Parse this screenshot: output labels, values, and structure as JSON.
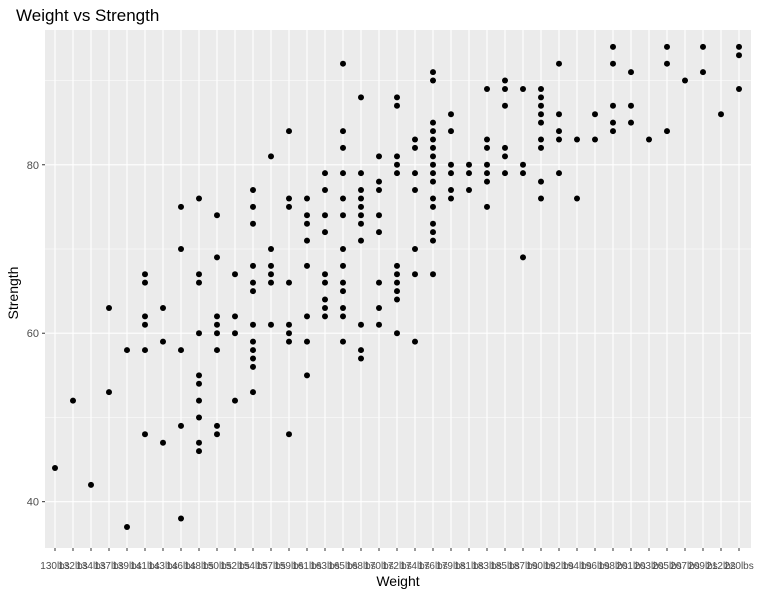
{
  "chart_data": {
    "type": "scatter",
    "title": "Weight vs Strength",
    "xlabel": "Weight",
    "ylabel": "Strength",
    "x_categories": [
      "130lbs",
      "132lbs",
      "134lbs",
      "137lbs",
      "139lbs",
      "141lbs",
      "143lbs",
      "146lbs",
      "148lbs",
      "150lbs",
      "152lbs",
      "154lbs",
      "157lbs",
      "159lbs",
      "161lbs",
      "163lbs",
      "165lbs",
      "168lbs",
      "170lbs",
      "172lbs",
      "174lbs",
      "176lbs",
      "179lbs",
      "181lbs",
      "183lbs",
      "185lbs",
      "187lbs",
      "190lbs",
      "192lbs",
      "194lbs",
      "196lbs",
      "198lbs",
      "201lbs",
      "203lbs",
      "205lbs",
      "207lbs",
      "209lbs",
      "212lbs",
      "220lbs"
    ],
    "ylim": [
      34.5,
      96
    ],
    "y_ticks": [
      40,
      60,
      80
    ],
    "grid": true,
    "points": [
      {
        "x": "130lbs",
        "y": 44
      },
      {
        "x": "132lbs",
        "y": 52
      },
      {
        "x": "134lbs",
        "y": 42
      },
      {
        "x": "137lbs",
        "y": 53
      },
      {
        "x": "137lbs",
        "y": 63
      },
      {
        "x": "139lbs",
        "y": 37
      },
      {
        "x": "139lbs",
        "y": 58
      },
      {
        "x": "141lbs",
        "y": 48
      },
      {
        "x": "141lbs",
        "y": 58
      },
      {
        "x": "141lbs",
        "y": 61
      },
      {
        "x": "141lbs",
        "y": 62
      },
      {
        "x": "141lbs",
        "y": 66
      },
      {
        "x": "141lbs",
        "y": 67
      },
      {
        "x": "143lbs",
        "y": 47
      },
      {
        "x": "143lbs",
        "y": 59
      },
      {
        "x": "143lbs",
        "y": 63
      },
      {
        "x": "146lbs",
        "y": 38
      },
      {
        "x": "146lbs",
        "y": 49
      },
      {
        "x": "146lbs",
        "y": 58
      },
      {
        "x": "146lbs",
        "y": 70
      },
      {
        "x": "146lbs",
        "y": 75
      },
      {
        "x": "148lbs",
        "y": 46
      },
      {
        "x": "148lbs",
        "y": 47
      },
      {
        "x": "148lbs",
        "y": 50
      },
      {
        "x": "148lbs",
        "y": 52
      },
      {
        "x": "148lbs",
        "y": 54
      },
      {
        "x": "148lbs",
        "y": 55
      },
      {
        "x": "148lbs",
        "y": 60
      },
      {
        "x": "148lbs",
        "y": 66
      },
      {
        "x": "148lbs",
        "y": 67
      },
      {
        "x": "148lbs",
        "y": 76
      },
      {
        "x": "150lbs",
        "y": 48
      },
      {
        "x": "150lbs",
        "y": 49
      },
      {
        "x": "150lbs",
        "y": 58
      },
      {
        "x": "150lbs",
        "y": 60
      },
      {
        "x": "150lbs",
        "y": 61
      },
      {
        "x": "150lbs",
        "y": 62
      },
      {
        "x": "150lbs",
        "y": 69
      },
      {
        "x": "150lbs",
        "y": 74
      },
      {
        "x": "152lbs",
        "y": 52
      },
      {
        "x": "152lbs",
        "y": 60
      },
      {
        "x": "152lbs",
        "y": 62
      },
      {
        "x": "152lbs",
        "y": 67
      },
      {
        "x": "154lbs",
        "y": 53
      },
      {
        "x": "154lbs",
        "y": 56
      },
      {
        "x": "154lbs",
        "y": 57
      },
      {
        "x": "154lbs",
        "y": 58
      },
      {
        "x": "154lbs",
        "y": 59
      },
      {
        "x": "154lbs",
        "y": 61
      },
      {
        "x": "154lbs",
        "y": 65
      },
      {
        "x": "154lbs",
        "y": 66
      },
      {
        "x": "154lbs",
        "y": 68
      },
      {
        "x": "154lbs",
        "y": 73
      },
      {
        "x": "154lbs",
        "y": 75
      },
      {
        "x": "154lbs",
        "y": 77
      },
      {
        "x": "157lbs",
        "y": 61
      },
      {
        "x": "157lbs",
        "y": 66
      },
      {
        "x": "157lbs",
        "y": 67
      },
      {
        "x": "157lbs",
        "y": 68
      },
      {
        "x": "157lbs",
        "y": 70
      },
      {
        "x": "157lbs",
        "y": 81
      },
      {
        "x": "159lbs",
        "y": 48
      },
      {
        "x": "159lbs",
        "y": 59
      },
      {
        "x": "159lbs",
        "y": 60
      },
      {
        "x": "159lbs",
        "y": 61
      },
      {
        "x": "159lbs",
        "y": 66
      },
      {
        "x": "159lbs",
        "y": 75
      },
      {
        "x": "159lbs",
        "y": 76
      },
      {
        "x": "159lbs",
        "y": 84
      },
      {
        "x": "161lbs",
        "y": 55
      },
      {
        "x": "161lbs",
        "y": 59
      },
      {
        "x": "161lbs",
        "y": 62
      },
      {
        "x": "161lbs",
        "y": 68
      },
      {
        "x": "161lbs",
        "y": 71
      },
      {
        "x": "161lbs",
        "y": 73
      },
      {
        "x": "161lbs",
        "y": 74
      },
      {
        "x": "161lbs",
        "y": 76
      },
      {
        "x": "163lbs",
        "y": 62
      },
      {
        "x": "163lbs",
        "y": 63
      },
      {
        "x": "163lbs",
        "y": 64
      },
      {
        "x": "163lbs",
        "y": 66
      },
      {
        "x": "163lbs",
        "y": 67
      },
      {
        "x": "163lbs",
        "y": 72
      },
      {
        "x": "163lbs",
        "y": 74
      },
      {
        "x": "163lbs",
        "y": 77
      },
      {
        "x": "163lbs",
        "y": 79
      },
      {
        "x": "165lbs",
        "y": 59
      },
      {
        "x": "165lbs",
        "y": 62
      },
      {
        "x": "165lbs",
        "y": 63
      },
      {
        "x": "165lbs",
        "y": 65
      },
      {
        "x": "165lbs",
        "y": 66
      },
      {
        "x": "165lbs",
        "y": 68
      },
      {
        "x": "165lbs",
        "y": 70
      },
      {
        "x": "165lbs",
        "y": 74
      },
      {
        "x": "165lbs",
        "y": 76
      },
      {
        "x": "165lbs",
        "y": 79
      },
      {
        "x": "165lbs",
        "y": 82
      },
      {
        "x": "165lbs",
        "y": 84
      },
      {
        "x": "165lbs",
        "y": 92
      },
      {
        "x": "168lbs",
        "y": 57
      },
      {
        "x": "168lbs",
        "y": 58
      },
      {
        "x": "168lbs",
        "y": 61
      },
      {
        "x": "168lbs",
        "y": 71
      },
      {
        "x": "168lbs",
        "y": 73
      },
      {
        "x": "168lbs",
        "y": 74
      },
      {
        "x": "168lbs",
        "y": 75
      },
      {
        "x": "168lbs",
        "y": 76
      },
      {
        "x": "168lbs",
        "y": 77
      },
      {
        "x": "168lbs",
        "y": 79
      },
      {
        "x": "168lbs",
        "y": 88
      },
      {
        "x": "170lbs",
        "y": 61
      },
      {
        "x": "170lbs",
        "y": 63
      },
      {
        "x": "170lbs",
        "y": 66
      },
      {
        "x": "170lbs",
        "y": 72
      },
      {
        "x": "170lbs",
        "y": 74
      },
      {
        "x": "170lbs",
        "y": 77
      },
      {
        "x": "170lbs",
        "y": 78
      },
      {
        "x": "170lbs",
        "y": 81
      },
      {
        "x": "172lbs",
        "y": 60
      },
      {
        "x": "172lbs",
        "y": 64
      },
      {
        "x": "172lbs",
        "y": 65
      },
      {
        "x": "172lbs",
        "y": 66
      },
      {
        "x": "172lbs",
        "y": 67
      },
      {
        "x": "172lbs",
        "y": 68
      },
      {
        "x": "172lbs",
        "y": 79
      },
      {
        "x": "172lbs",
        "y": 80
      },
      {
        "x": "172lbs",
        "y": 81
      },
      {
        "x": "172lbs",
        "y": 87
      },
      {
        "x": "172lbs",
        "y": 88
      },
      {
        "x": "174lbs",
        "y": 59
      },
      {
        "x": "174lbs",
        "y": 67
      },
      {
        "x": "174lbs",
        "y": 70
      },
      {
        "x": "174lbs",
        "y": 77
      },
      {
        "x": "174lbs",
        "y": 79
      },
      {
        "x": "174lbs",
        "y": 82
      },
      {
        "x": "174lbs",
        "y": 83
      },
      {
        "x": "176lbs",
        "y": 67
      },
      {
        "x": "176lbs",
        "y": 71
      },
      {
        "x": "176lbs",
        "y": 72
      },
      {
        "x": "176lbs",
        "y": 73
      },
      {
        "x": "176lbs",
        "y": 75
      },
      {
        "x": "176lbs",
        "y": 76
      },
      {
        "x": "176lbs",
        "y": 78
      },
      {
        "x": "176lbs",
        "y": 79
      },
      {
        "x": "176lbs",
        "y": 80
      },
      {
        "x": "176lbs",
        "y": 81
      },
      {
        "x": "176lbs",
        "y": 82
      },
      {
        "x": "176lbs",
        "y": 83
      },
      {
        "x": "176lbs",
        "y": 84
      },
      {
        "x": "176lbs",
        "y": 85
      },
      {
        "x": "176lbs",
        "y": 90
      },
      {
        "x": "176lbs",
        "y": 91
      },
      {
        "x": "179lbs",
        "y": 76
      },
      {
        "x": "179lbs",
        "y": 77
      },
      {
        "x": "179lbs",
        "y": 79
      },
      {
        "x": "179lbs",
        "y": 80
      },
      {
        "x": "179lbs",
        "y": 84
      },
      {
        "x": "179lbs",
        "y": 86
      },
      {
        "x": "181lbs",
        "y": 77
      },
      {
        "x": "181lbs",
        "y": 79
      },
      {
        "x": "181lbs",
        "y": 80
      },
      {
        "x": "183lbs",
        "y": 75
      },
      {
        "x": "183lbs",
        "y": 78
      },
      {
        "x": "183lbs",
        "y": 79
      },
      {
        "x": "183lbs",
        "y": 80
      },
      {
        "x": "183lbs",
        "y": 82
      },
      {
        "x": "183lbs",
        "y": 83
      },
      {
        "x": "183lbs",
        "y": 89
      },
      {
        "x": "185lbs",
        "y": 79
      },
      {
        "x": "185lbs",
        "y": 81
      },
      {
        "x": "185lbs",
        "y": 82
      },
      {
        "x": "185lbs",
        "y": 87
      },
      {
        "x": "185lbs",
        "y": 89
      },
      {
        "x": "185lbs",
        "y": 90
      },
      {
        "x": "187lbs",
        "y": 69
      },
      {
        "x": "187lbs",
        "y": 79
      },
      {
        "x": "187lbs",
        "y": 80
      },
      {
        "x": "187lbs",
        "y": 89
      },
      {
        "x": "190lbs",
        "y": 76
      },
      {
        "x": "190lbs",
        "y": 78
      },
      {
        "x": "190lbs",
        "y": 82
      },
      {
        "x": "190lbs",
        "y": 83
      },
      {
        "x": "190lbs",
        "y": 85
      },
      {
        "x": "190lbs",
        "y": 86
      },
      {
        "x": "190lbs",
        "y": 87
      },
      {
        "x": "190lbs",
        "y": 88
      },
      {
        "x": "190lbs",
        "y": 89
      },
      {
        "x": "192lbs",
        "y": 79
      },
      {
        "x": "192lbs",
        "y": 83
      },
      {
        "x": "192lbs",
        "y": 84
      },
      {
        "x": "192lbs",
        "y": 86
      },
      {
        "x": "192lbs",
        "y": 92
      },
      {
        "x": "194lbs",
        "y": 76
      },
      {
        "x": "194lbs",
        "y": 83
      },
      {
        "x": "196lbs",
        "y": 83
      },
      {
        "x": "196lbs",
        "y": 86
      },
      {
        "x": "198lbs",
        "y": 84
      },
      {
        "x": "198lbs",
        "y": 85
      },
      {
        "x": "198lbs",
        "y": 87
      },
      {
        "x": "198lbs",
        "y": 92
      },
      {
        "x": "198lbs",
        "y": 94
      },
      {
        "x": "201lbs",
        "y": 85
      },
      {
        "x": "201lbs",
        "y": 87
      },
      {
        "x": "201lbs",
        "y": 91
      },
      {
        "x": "203lbs",
        "y": 83
      },
      {
        "x": "205lbs",
        "y": 84
      },
      {
        "x": "205lbs",
        "y": 92
      },
      {
        "x": "205lbs",
        "y": 94
      },
      {
        "x": "207lbs",
        "y": 90
      },
      {
        "x": "209lbs",
        "y": 91
      },
      {
        "x": "209lbs",
        "y": 94
      },
      {
        "x": "212lbs",
        "y": 86
      },
      {
        "x": "220lbs",
        "y": 93
      },
      {
        "x": "220lbs",
        "y": 94
      }
    ],
    "extra_points": [
      {
        "x": "220lbs",
        "y": 89
      }
    ]
  }
}
